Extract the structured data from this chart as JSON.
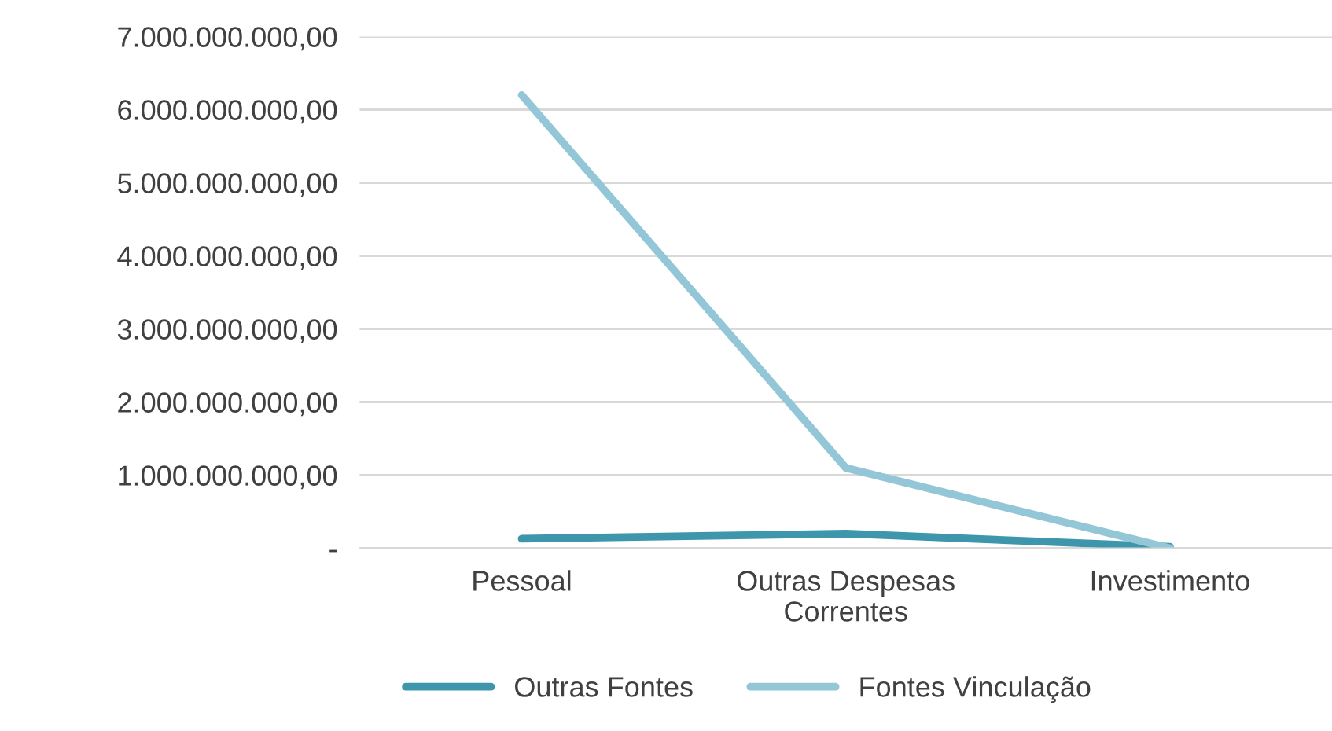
{
  "chart_data": {
    "type": "line",
    "categories": [
      "Pessoal",
      "Outras Despesas\nCorrentes",
      "Investimento"
    ],
    "series": [
      {
        "name": "Outras Fontes",
        "color": "#3d96ab",
        "values": [
          130000000,
          200000000,
          20000000
        ]
      },
      {
        "name": "Fontes Vinculação",
        "color": "#93c6d6",
        "values": [
          6200000000,
          1100000000,
          0
        ]
      }
    ],
    "ylim": [
      0,
      7000000000
    ],
    "yticks": [
      {
        "value": 0,
        "label": "-"
      },
      {
        "value": 1000000000,
        "label": "1.000.000.000,00"
      },
      {
        "value": 2000000000,
        "label": "2.000.000.000,00"
      },
      {
        "value": 3000000000,
        "label": "3.000.000.000,00"
      },
      {
        "value": 4000000000,
        "label": "4.000.000.000,00"
      },
      {
        "value": 5000000000,
        "label": "5.000.000.000,00"
      },
      {
        "value": 6000000000,
        "label": "6.000.000.000,00"
      },
      {
        "value": 7000000000,
        "label": "7.000.000.000,00"
      }
    ],
    "grid": "y",
    "legend": "bottom",
    "marker": "none",
    "line_style": "solid"
  }
}
